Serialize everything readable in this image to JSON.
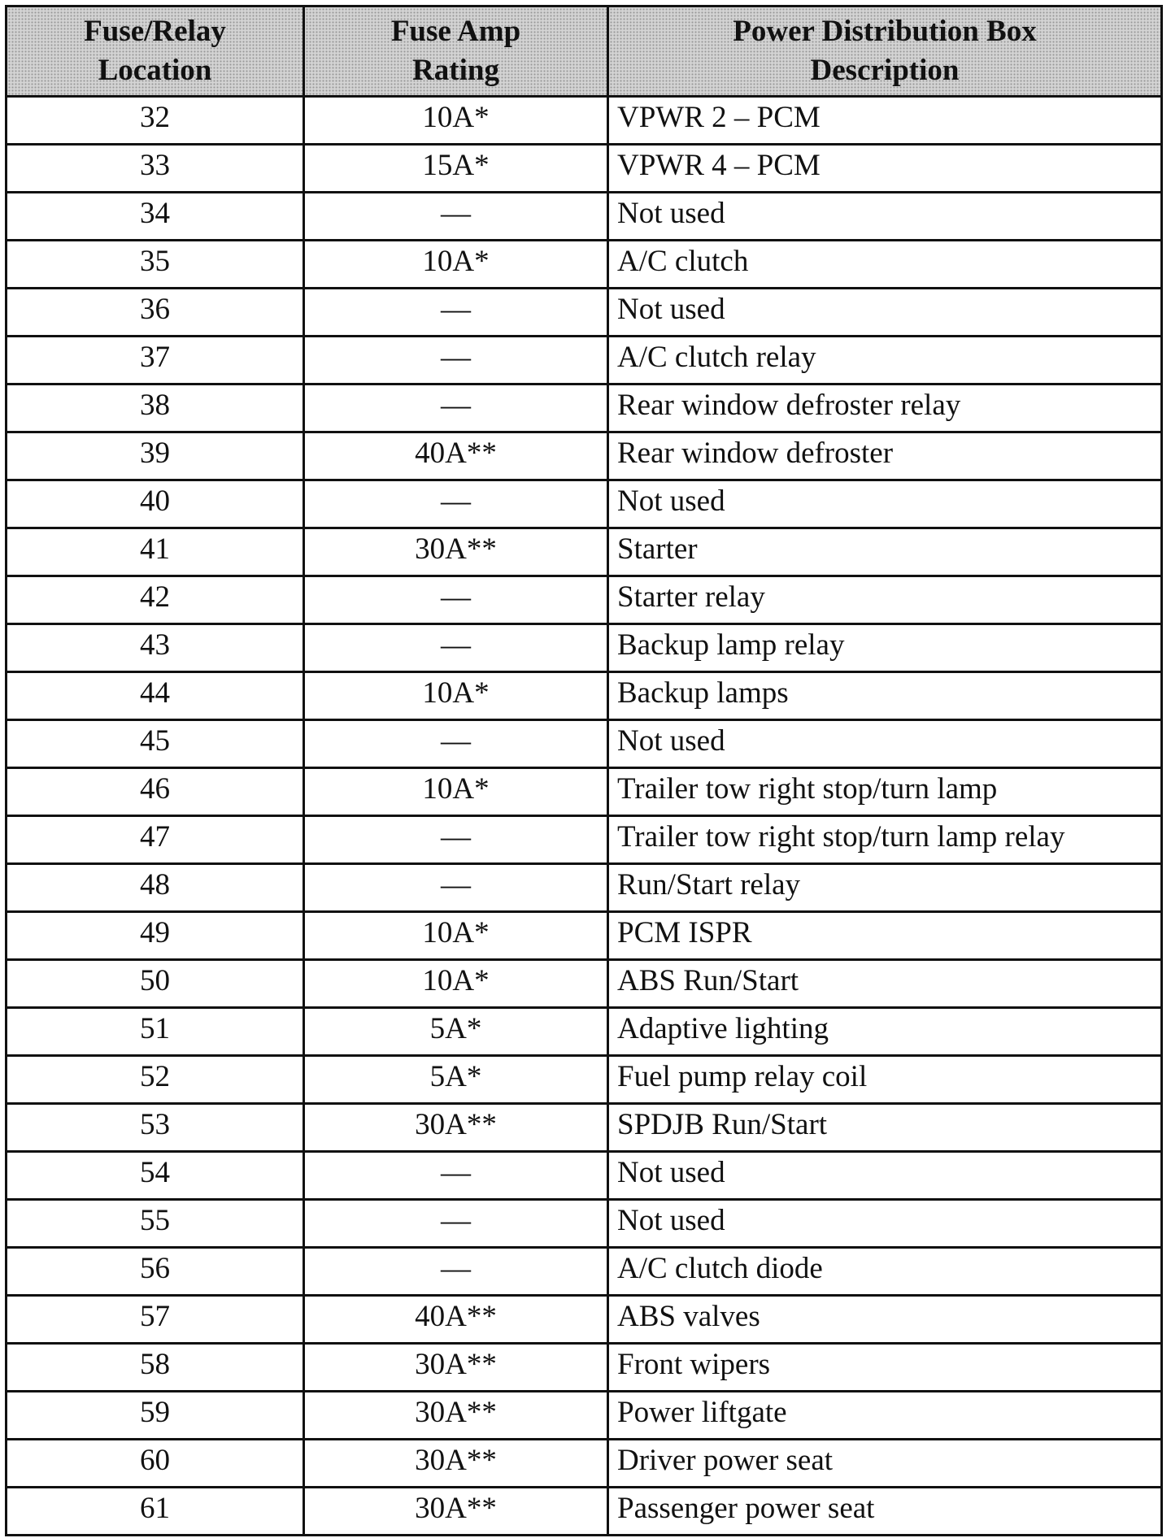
{
  "table": {
    "headers": [
      "Fuse/Relay Location",
      "Fuse Amp Rating",
      "Power Distribution Box Description"
    ],
    "rows": [
      [
        "32",
        "10A*",
        "VPWR 2 – PCM"
      ],
      [
        "33",
        "15A*",
        "VPWR 4 – PCM"
      ],
      [
        "34",
        "—",
        "Not used"
      ],
      [
        "35",
        "10A*",
        "A/C clutch"
      ],
      [
        "36",
        "—",
        "Not used"
      ],
      [
        "37",
        "—",
        "A/C clutch relay"
      ],
      [
        "38",
        "—",
        "Rear window defroster relay"
      ],
      [
        "39",
        "40A**",
        "Rear window defroster"
      ],
      [
        "40",
        "—",
        "Not used"
      ],
      [
        "41",
        "30A**",
        "Starter"
      ],
      [
        "42",
        "—",
        "Starter relay"
      ],
      [
        "43",
        "—",
        "Backup lamp relay"
      ],
      [
        "44",
        "10A*",
        "Backup lamps"
      ],
      [
        "45",
        "—",
        "Not used"
      ],
      [
        "46",
        "10A*",
        "Trailer tow right stop/turn lamp"
      ],
      [
        "47",
        "—",
        "Trailer tow right stop/turn lamp relay"
      ],
      [
        "48",
        "—",
        "Run/Start relay"
      ],
      [
        "49",
        "10A*",
        "PCM ISPR"
      ],
      [
        "50",
        "10A*",
        "ABS Run/Start"
      ],
      [
        "51",
        "5A*",
        "Adaptive lighting"
      ],
      [
        "52",
        "5A*",
        "Fuel pump relay coil"
      ],
      [
        "53",
        "30A**",
        "SPDJB Run/Start"
      ],
      [
        "54",
        "—",
        "Not used"
      ],
      [
        "55",
        "—",
        "Not used"
      ],
      [
        "56",
        "—",
        "A/C clutch diode"
      ],
      [
        "57",
        "40A**",
        "ABS valves"
      ],
      [
        "58",
        "30A**",
        "Front wipers"
      ],
      [
        "59",
        "30A**",
        "Power liftgate"
      ],
      [
        "60",
        "30A**",
        "Driver power seat"
      ],
      [
        "61",
        "30A**",
        "Passenger power seat"
      ]
    ]
  }
}
